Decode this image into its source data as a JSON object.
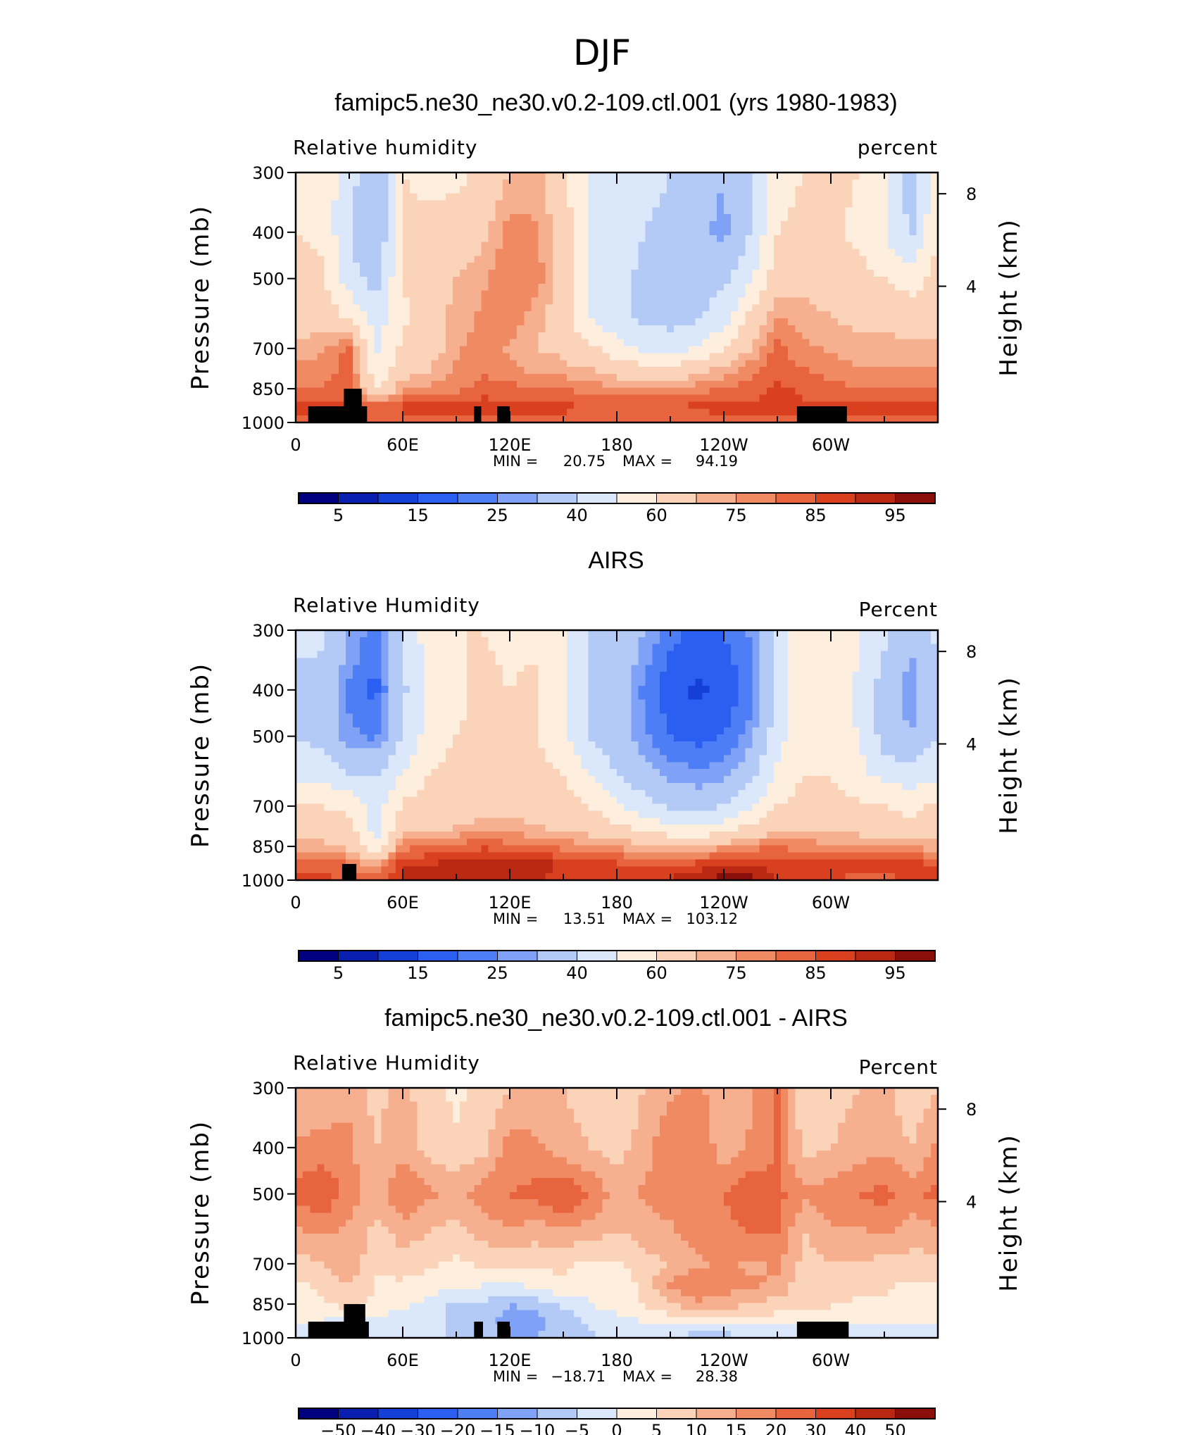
{
  "figure_title": "DJF",
  "colors": {
    "rh_palette": [
      "#000080",
      "#0a1eb0",
      "#1440d8",
      "#2a5ff2",
      "#4d7ef5",
      "#7fa2f6",
      "#b3c9f6",
      "#dbe8fb",
      "#fdeedd",
      "#fbd3b9",
      "#f6b08f",
      "#f08a63",
      "#e8643e",
      "#d8401e",
      "#b82812",
      "#8a0f0a"
    ],
    "diff_palette": [
      "#000080",
      "#0a1eb0",
      "#1440d8",
      "#2a5ff2",
      "#4d7ef5",
      "#7fa2f6",
      "#b3c9f6",
      "#dbe8fb",
      "#fdeedd",
      "#fbd3b9",
      "#f6b08f",
      "#f08a63",
      "#e8643e",
      "#d8401e",
      "#b82812",
      "#8a0f0a"
    ],
    "topography": "#000000"
  },
  "chart_data": [
    {
      "type": "heatmap",
      "title": "famipc5.ne30_ne30.v0.2-109.ctl.001 (yrs 1980-1983)",
      "left_label": "Relative  humidity",
      "right_label": "percent",
      "ylabel": "Pressure  (mb)",
      "y2label": "Height  (km)",
      "x_ticks": [
        "0",
        "60E",
        "120E",
        "180",
        "120W",
        "60W"
      ],
      "y_ticks": [
        "300",
        "400",
        "500",
        "700",
        "850",
        "1000"
      ],
      "y2_ticks": [
        "8",
        "4"
      ],
      "stats": {
        "min_label": "MIN =",
        "min": "20.75",
        "max_label": "MAX =",
        "max": "94.19"
      },
      "colorbar_ticks": [
        "5",
        "15",
        "25",
        "40",
        "60",
        "75",
        "85",
        "95"
      ],
      "ylim": [
        1000,
        300
      ],
      "xlim": [
        0,
        360
      ],
      "longitudes": [
        0,
        15,
        30,
        45,
        60,
        75,
        90,
        105,
        120,
        135,
        150,
        165,
        180,
        195,
        210,
        225,
        240,
        255,
        270,
        285,
        300,
        315,
        330,
        345,
        360
      ],
      "pressures": [
        300,
        400,
        500,
        600,
        700,
        775,
        850,
        925,
        1000
      ],
      "values": [
        [
          55,
          55,
          45,
          30,
          60,
          58,
          58,
          62,
          70,
          72,
          62,
          48,
          45,
          42,
          40,
          35,
          30,
          38,
          55,
          60,
          62,
          60,
          55,
          35,
          55
        ],
        [
          60,
          58,
          40,
          28,
          62,
          62,
          64,
          68,
          78,
          76,
          66,
          50,
          45,
          40,
          38,
          32,
          28,
          40,
          60,
          64,
          62,
          58,
          50,
          38,
          60
        ],
        [
          64,
          62,
          45,
          35,
          60,
          66,
          70,
          74,
          80,
          78,
          66,
          48,
          42,
          38,
          38,
          36,
          38,
          48,
          66,
          68,
          66,
          64,
          60,
          55,
          64
        ],
        [
          66,
          66,
          58,
          45,
          58,
          66,
          72,
          76,
          78,
          72,
          64,
          50,
          42,
          38,
          36,
          38,
          45,
          62,
          75,
          72,
          70,
          68,
          68,
          66,
          66
        ],
        [
          72,
          74,
          82,
          48,
          62,
          66,
          74,
          78,
          74,
          70,
          68,
          62,
          55,
          48,
          46,
          50,
          60,
          70,
          82,
          76,
          74,
          72,
          72,
          72,
          72
        ],
        [
          76,
          78,
          82,
          52,
          66,
          70,
          76,
          80,
          76,
          74,
          72,
          70,
          66,
          64,
          64,
          66,
          72,
          78,
          84,
          80,
          78,
          76,
          76,
          76,
          76
        ],
        [
          80,
          80,
          84,
          58,
          74,
          76,
          78,
          82,
          82,
          80,
          80,
          78,
          76,
          76,
          76,
          78,
          80,
          82,
          86,
          84,
          82,
          80,
          80,
          80,
          80
        ],
        [
          86,
          86,
          86,
          82,
          86,
          88,
          86,
          88,
          86,
          86,
          86,
          84,
          84,
          84,
          84,
          86,
          86,
          86,
          88,
          86,
          86,
          86,
          88,
          88,
          86
        ],
        [
          84,
          84,
          84,
          84,
          84,
          84,
          84,
          84,
          84,
          84,
          84,
          82,
          82,
          82,
          82,
          82,
          84,
          84,
          84,
          84,
          84,
          84,
          84,
          84,
          84
        ]
      ],
      "topography_blocks": [
        {
          "lon0": 7,
          "lon1": 40,
          "p_top": 925
        },
        {
          "lon0": 27,
          "lon1": 37,
          "p_top": 850
        },
        {
          "lon0": 100,
          "lon1": 104,
          "p_top": 925
        },
        {
          "lon0": 113,
          "lon1": 120,
          "p_top": 925
        },
        {
          "lon0": 281,
          "lon1": 309,
          "p_top": 925
        }
      ]
    },
    {
      "type": "heatmap",
      "title": "AIRS",
      "left_label": "Relative  Humidity",
      "right_label": "Percent",
      "ylabel": "Pressure  (mb)",
      "y2label": "Height  (km)",
      "x_ticks": [
        "0",
        "60E",
        "120E",
        "180",
        "120W",
        "60W"
      ],
      "y_ticks": [
        "300",
        "400",
        "500",
        "700",
        "850",
        "1000"
      ],
      "y2_ticks": [
        "8",
        "4"
      ],
      "stats": {
        "min_label": "MIN =",
        "min": "13.51",
        "max_label": "MAX =",
        "max": "103.12"
      },
      "colorbar_ticks": [
        "5",
        "15",
        "25",
        "40",
        "60",
        "75",
        "85",
        "95"
      ],
      "ylim": [
        1000,
        300
      ],
      "xlim": [
        0,
        360
      ],
      "longitudes": [
        0,
        15,
        30,
        45,
        60,
        75,
        90,
        105,
        120,
        135,
        150,
        165,
        180,
        195,
        210,
        225,
        240,
        255,
        270,
        285,
        300,
        315,
        330,
        345,
        360
      ],
      "pressures": [
        300,
        400,
        500,
        600,
        700,
        775,
        850,
        925,
        1000
      ],
      "values": [
        [
          42,
          42,
          30,
          22,
          42,
          55,
          60,
          60,
          58,
          58,
          50,
          40,
          38,
          30,
          22,
          18,
          20,
          26,
          45,
          58,
          58,
          52,
          42,
          32,
          42
        ],
        [
          38,
          36,
          24,
          18,
          38,
          52,
          58,
          62,
          60,
          62,
          52,
          38,
          34,
          24,
          16,
          14,
          16,
          22,
          42,
          58,
          56,
          48,
          35,
          26,
          38
        ],
        [
          40,
          36,
          26,
          24,
          40,
          55,
          60,
          62,
          60,
          60,
          52,
          40,
          34,
          26,
          20,
          18,
          20,
          28,
          46,
          58,
          56,
          50,
          36,
          30,
          40
        ],
        [
          48,
          46,
          40,
          40,
          50,
          60,
          64,
          64,
          64,
          64,
          60,
          50,
          40,
          34,
          28,
          26,
          28,
          36,
          52,
          60,
          60,
          54,
          46,
          44,
          48
        ],
        [
          62,
          60,
          58,
          44,
          62,
          64,
          66,
          68,
          68,
          66,
          64,
          60,
          52,
          44,
          38,
          36,
          40,
          50,
          60,
          64,
          64,
          62,
          60,
          58,
          62
        ],
        [
          66,
          66,
          62,
          46,
          66,
          68,
          70,
          72,
          72,
          70,
          68,
          66,
          62,
          58,
          52,
          50,
          54,
          62,
          66,
          68,
          68,
          66,
          64,
          62,
          66
        ],
        [
          72,
          72,
          68,
          52,
          78,
          80,
          82,
          84,
          82,
          80,
          78,
          76,
          74,
          72,
          70,
          70,
          74,
          78,
          80,
          78,
          76,
          76,
          76,
          74,
          72
        ],
        [
          84,
          84,
          80,
          72,
          90,
          90,
          92,
          94,
          92,
          92,
          90,
          88,
          86,
          84,
          84,
          86,
          88,
          90,
          86,
          86,
          86,
          86,
          86,
          88,
          84
        ],
        [
          86,
          86,
          84,
          82,
          90,
          90,
          90,
          92,
          90,
          90,
          88,
          88,
          88,
          88,
          90,
          96,
          98,
          98,
          90,
          86,
          86,
          84,
          84,
          86,
          86
        ]
      ],
      "topography_blocks": [
        {
          "lon0": 26,
          "lon1": 34,
          "p_top": 925
        }
      ]
    },
    {
      "type": "heatmap",
      "title": "famipc5.ne30_ne30.v0.2-109.ctl.001 - AIRS",
      "left_label": "Relative  Humidity",
      "right_label": "Percent",
      "ylabel": "Pressure  (mb)",
      "y2label": "Height  (km)",
      "x_ticks": [
        "0",
        "60E",
        "120E",
        "180",
        "120W",
        "60W"
      ],
      "y_ticks": [
        "300",
        "400",
        "500",
        "700",
        "850",
        "1000"
      ],
      "y2_ticks": [
        "8",
        "4"
      ],
      "stats": {
        "min_label": "MIN =",
        "min": "−18.71",
        "max_label": "MAX =",
        "max": "28.38"
      },
      "colorbar_ticks": [
        "−50",
        "−40",
        "−30",
        "−20",
        "−15",
        "−10",
        "−5",
        "0",
        "5",
        "10",
        "15",
        "20",
        "30",
        "40",
        "50"
      ],
      "ylim": [
        1000,
        300
      ],
      "xlim": [
        0,
        360
      ],
      "longitudes": [
        0,
        15,
        30,
        45,
        60,
        75,
        90,
        105,
        120,
        135,
        150,
        165,
        180,
        195,
        210,
        225,
        240,
        255,
        270,
        285,
        300,
        315,
        330,
        345,
        360
      ],
      "pressures": [
        300,
        400,
        500,
        600,
        700,
        775,
        850,
        925,
        1000
      ],
      "values": [
        [
          10,
          10,
          14,
          8,
          12,
          6,
          4,
          6,
          10,
          12,
          10,
          8,
          6,
          10,
          14,
          16,
          12,
          14,
          22,
          6,
          8,
          10,
          12,
          6,
          10
        ],
        [
          16,
          18,
          16,
          10,
          14,
          8,
          6,
          8,
          18,
          16,
          12,
          10,
          8,
          12,
          20,
          20,
          12,
          16,
          20,
          8,
          10,
          12,
          14,
          10,
          16
        ],
        [
          22,
          24,
          18,
          12,
          20,
          16,
          14,
          18,
          20,
          22,
          26,
          20,
          12,
          16,
          18,
          20,
          20,
          24,
          22,
          16,
          18,
          20,
          22,
          18,
          22
        ],
        [
          14,
          16,
          14,
          8,
          12,
          10,
          8,
          12,
          14,
          12,
          14,
          12,
          10,
          12,
          14,
          18,
          18,
          20,
          20,
          10,
          14,
          14,
          16,
          12,
          14
        ],
        [
          8,
          10,
          14,
          6,
          8,
          6,
          4,
          6,
          6,
          6,
          6,
          4,
          4,
          8,
          10,
          14,
          16,
          14,
          16,
          8,
          10,
          10,
          8,
          8,
          8
        ],
        [
          4,
          6,
          10,
          4,
          4,
          2,
          2,
          0,
          -2,
          2,
          4,
          2,
          2,
          6,
          16,
          20,
          18,
          16,
          14,
          6,
          8,
          6,
          6,
          4,
          4
        ],
        [
          2,
          4,
          8,
          4,
          2,
          -2,
          -6,
          -6,
          -10,
          -8,
          -4,
          0,
          2,
          6,
          10,
          14,
          12,
          10,
          8,
          6,
          6,
          4,
          4,
          2,
          2
        ],
        [
          0,
          0,
          -2,
          -2,
          -4,
          -4,
          -6,
          -8,
          -12,
          -12,
          -8,
          -4,
          -2,
          0,
          2,
          4,
          4,
          2,
          2,
          0,
          0,
          0,
          0,
          0,
          0
        ],
        [
          -2,
          -2,
          -2,
          -2,
          -4,
          -4,
          -6,
          -8,
          -10,
          -10,
          -8,
          -6,
          -4,
          -4,
          -6,
          -8,
          -8,
          -6,
          -4,
          -2,
          -2,
          -2,
          -2,
          -2,
          -2
        ]
      ],
      "topography_blocks": [
        {
          "lon0": 7,
          "lon1": 41,
          "p_top": 925
        },
        {
          "lon0": 27,
          "lon1": 39,
          "p_top": 850
        },
        {
          "lon0": 100,
          "lon1": 105,
          "p_top": 925
        },
        {
          "lon0": 113,
          "lon1": 120,
          "p_top": 925
        },
        {
          "lon0": 281,
          "lon1": 310,
          "p_top": 925
        }
      ]
    }
  ]
}
